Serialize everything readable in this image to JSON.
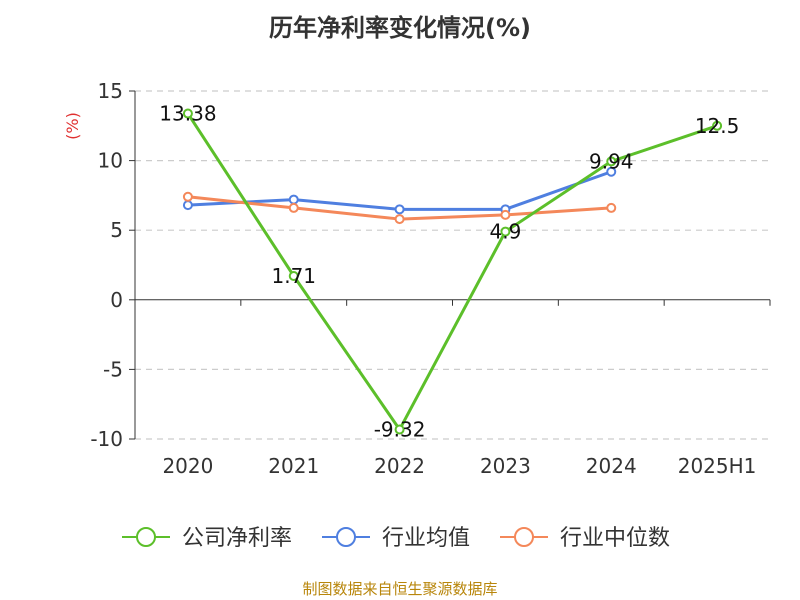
{
  "chart_data": {
    "type": "line",
    "title": "历年净利率变化情况(%)",
    "ylabel": "(%)",
    "xlabel": "",
    "categories": [
      "2020",
      "2021",
      "2022",
      "2023",
      "2024",
      "2025H1"
    ],
    "ylim": [
      -10,
      15
    ],
    "yticks": [
      "15",
      "10",
      "5",
      "0",
      "-5",
      "-10"
    ],
    "grid": true,
    "legend_position": "bottom",
    "series": [
      {
        "name": "公司净利率",
        "color": "#5cbf2a",
        "values": [
          13.38,
          1.71,
          -9.32,
          4.9,
          9.94,
          12.5
        ],
        "labels": [
          "13.38",
          "1.71",
          "-9.32",
          "4.9",
          "9.94",
          "12.5"
        ]
      },
      {
        "name": "行业均值",
        "color": "#4f7fe0",
        "values": [
          6.8,
          7.2,
          6.5,
          6.5,
          9.2,
          null
        ]
      },
      {
        "name": "行业中位数",
        "color": "#f4885a",
        "values": [
          7.4,
          6.6,
          5.8,
          6.1,
          6.6,
          null
        ]
      }
    ]
  },
  "footer": "制图数据来自恒生聚源数据库"
}
